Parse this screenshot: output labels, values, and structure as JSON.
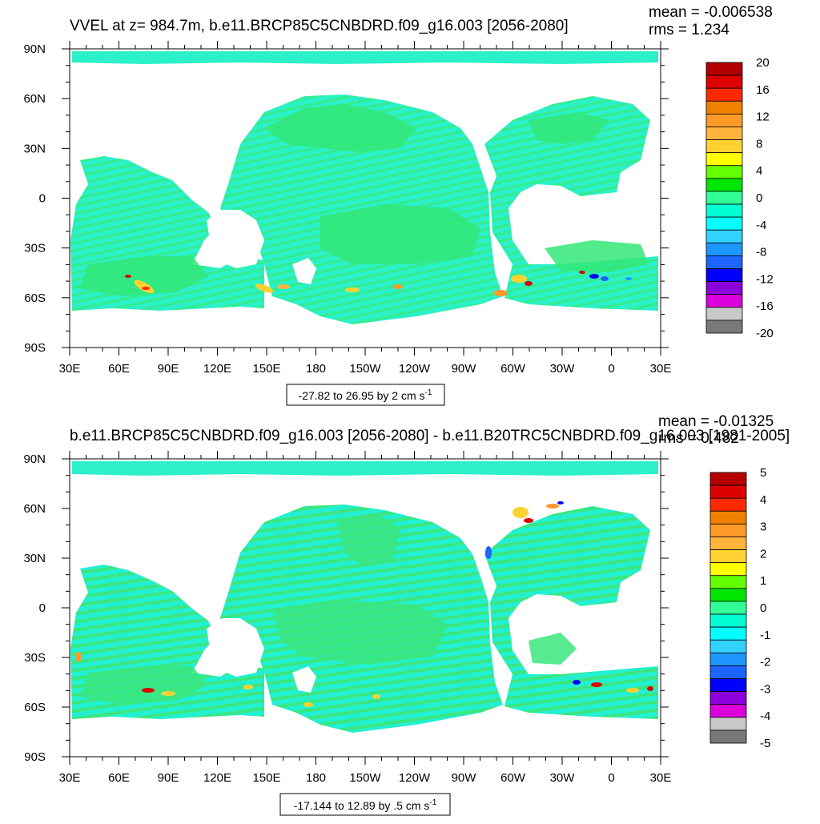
{
  "chart_data": [
    {
      "type": "heatmap",
      "title": "VVEL at z= 984.7m, b.e11.BRCP85C5CNBDRD.f09_g16.003 [2056-2080]",
      "stats": {
        "mean": "mean = -0.006538",
        "rms": "rms = 1.234"
      },
      "xlabel": "-27.82 to 26.95 by 2 cm s",
      "xlabel_sup": "-1",
      "x_ticks": [
        "30E",
        "60E",
        "90E",
        "120E",
        "150E",
        "180",
        "150W",
        "120W",
        "90W",
        "60W",
        "30W",
        "0",
        "30E"
      ],
      "y_ticks": [
        "90N",
        "60N",
        "30N",
        "0",
        "30S",
        "60S",
        "90S"
      ],
      "colorbar_levels": [
        "20",
        "16",
        "12",
        "8",
        "4",
        "0",
        "-4",
        "-8",
        "-12",
        "-16",
        "-20"
      ],
      "colorbar_colors": [
        "#b40000",
        "#dc0000",
        "#ff2800",
        "#f08000",
        "#ff9a28",
        "#ffb43c",
        "#ffd232",
        "#ffff00",
        "#64ff00",
        "#00e600",
        "#32ff96",
        "#00ffd2",
        "#00ffff",
        "#32d2ff",
        "#1e96ff",
        "#1e64ff",
        "#0000ff",
        "#8c00dc",
        "#dc00dc",
        "#c8c8c8",
        "#787878"
      ],
      "xlim": [
        30,
        390
      ],
      "ylim": [
        -90,
        90
      ]
    },
    {
      "type": "heatmap",
      "title": "b.e11.BRCP85C5CNBDRD.f09_g16.003 [2056-2080] - b.e11.B20TRC5CNBDRD.f09_g16.003 [1981-2005]",
      "stats": {
        "mean": "mean = -0.01325",
        "rms": "rms = 0.482"
      },
      "xlabel": "-17.144 to 12.89 by .5 cm s",
      "xlabel_sup": "-1",
      "x_ticks": [
        "30E",
        "60E",
        "90E",
        "120E",
        "150E",
        "180",
        "150W",
        "120W",
        "90W",
        "60W",
        "30W",
        "0",
        "30E"
      ],
      "y_ticks": [
        "90N",
        "60N",
        "30N",
        "0",
        "30S",
        "60S",
        "90S"
      ],
      "colorbar_levels": [
        "5",
        "4",
        "3",
        "2",
        "1",
        "0",
        "-1",
        "-2",
        "-3",
        "-4",
        "-5"
      ],
      "colorbar_colors": [
        "#b40000",
        "#dc0000",
        "#ff2800",
        "#f08000",
        "#ff9a28",
        "#ffb43c",
        "#ffd232",
        "#ffff00",
        "#64ff00",
        "#00e600",
        "#32ff96",
        "#00ffd2",
        "#00ffff",
        "#32d2ff",
        "#1e96ff",
        "#1e64ff",
        "#0000ff",
        "#8c00dc",
        "#dc00dc",
        "#c8c8c8",
        "#787878"
      ],
      "xlim": [
        30,
        390
      ],
      "ylim": [
        -90,
        90
      ]
    }
  ]
}
